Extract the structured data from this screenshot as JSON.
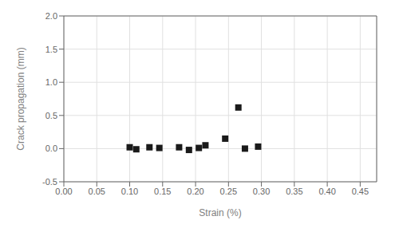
{
  "chart_data": {
    "type": "scatter",
    "x": [
      0.1,
      0.11,
      0.13,
      0.145,
      0.175,
      0.19,
      0.205,
      0.215,
      0.245,
      0.265,
      0.275,
      0.295
    ],
    "values": [
      0.02,
      -0.01,
      0.02,
      0.01,
      0.02,
      -0.02,
      0.01,
      0.05,
      0.15,
      0.62,
      0.0,
      0.03
    ],
    "xlabel": "Strain (%)",
    "ylabel": "Crack propagation (mm)",
    "xlim": [
      0.0,
      0.475
    ],
    "ylim": [
      -0.5,
      2.0
    ],
    "xticks": [
      {
        "value": 0.0,
        "label": "0.00"
      },
      0.05,
      {
        "value": 0.1,
        "label": "0.10"
      },
      0.15,
      {
        "value": 0.2,
        "label": "0.20"
      },
      0.25,
      {
        "value": 0.3,
        "label": "0.30"
      },
      0.35,
      {
        "value": 0.4,
        "label": "0.40"
      },
      0.45
    ],
    "yticks": [
      -0.5,
      {
        "value": 0.0,
        "label": "0.0"
      },
      0.5,
      {
        "value": 1.0,
        "label": "1.0"
      },
      1.5,
      {
        "value": 2.0,
        "label": "2.0"
      }
    ],
    "color": "#1a1a1a",
    "marker": "square",
    "grid": true
  }
}
